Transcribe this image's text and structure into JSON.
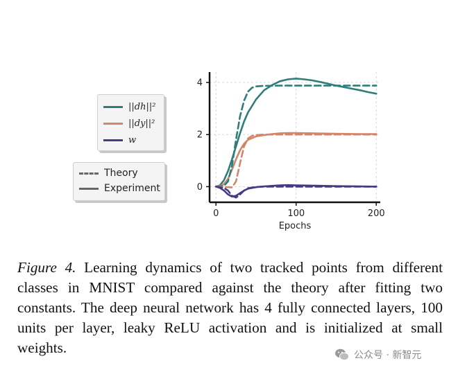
{
  "chart_data": {
    "type": "line",
    "xlabel": "Epochs",
    "ylabel": "",
    "xlim": [
      -8,
      205
    ],
    "ylim": [
      -0.6,
      4.4
    ],
    "xticks": [
      0,
      100,
      200
    ],
    "yticks": [
      0,
      2,
      4
    ],
    "grid": true,
    "legend": [
      {
        "placement": "upper-left-outside",
        "entries": [
          {
            "label": "||dh||^2",
            "color": "#2f7d7b",
            "style": "solid"
          },
          {
            "label": "||dy||^2",
            "color": "#d2856a",
            "style": "solid"
          },
          {
            "label": "w",
            "color": "#433b84",
            "style": "solid"
          }
        ]
      },
      {
        "placement": "lower-left-outside",
        "entries": [
          {
            "label": "Theory",
            "color": "#666666",
            "style": "dashed"
          },
          {
            "label": "Experiment",
            "color": "#666666",
            "style": "solid"
          }
        ]
      }
    ],
    "series": [
      {
        "name": "||dh||^2 Experiment",
        "color": "#2f7d7b",
        "style": "solid",
        "points": [
          [
            0,
            0
          ],
          [
            5,
            0.05
          ],
          [
            10,
            0.25
          ],
          [
            15,
            0.6
          ],
          [
            20,
            1.05
          ],
          [
            25,
            1.55
          ],
          [
            30,
            2.05
          ],
          [
            35,
            2.5
          ],
          [
            40,
            2.85
          ],
          [
            50,
            3.35
          ],
          [
            60,
            3.7
          ],
          [
            70,
            3.9
          ],
          [
            80,
            4.05
          ],
          [
            90,
            4.12
          ],
          [
            100,
            4.15
          ],
          [
            110,
            4.12
          ],
          [
            120,
            4.08
          ],
          [
            130,
            4.02
          ],
          [
            140,
            3.95
          ],
          [
            150,
            3.88
          ],
          [
            160,
            3.82
          ],
          [
            170,
            3.76
          ],
          [
            180,
            3.7
          ],
          [
            190,
            3.63
          ],
          [
            200,
            3.57
          ]
        ]
      },
      {
        "name": "||dh||^2 Theory",
        "color": "#2f7d7b",
        "style": "dashed",
        "points": [
          [
            0,
            0
          ],
          [
            10,
            0.03
          ],
          [
            15,
            0.2
          ],
          [
            20,
            0.8
          ],
          [
            25,
            1.8
          ],
          [
            30,
            2.7
          ],
          [
            35,
            3.3
          ],
          [
            40,
            3.65
          ],
          [
            45,
            3.8
          ],
          [
            50,
            3.85
          ],
          [
            60,
            3.87
          ],
          [
            80,
            3.88
          ],
          [
            100,
            3.88
          ],
          [
            150,
            3.88
          ],
          [
            200,
            3.88
          ]
        ]
      },
      {
        "name": "||dy||^2 Experiment",
        "color": "#d2856a",
        "style": "solid",
        "points": [
          [
            0,
            0
          ],
          [
            5,
            0.02
          ],
          [
            10,
            0.1
          ],
          [
            15,
            0.3
          ],
          [
            20,
            0.65
          ],
          [
            25,
            1.05
          ],
          [
            30,
            1.4
          ],
          [
            35,
            1.65
          ],
          [
            40,
            1.8
          ],
          [
            50,
            1.93
          ],
          [
            60,
            1.98
          ],
          [
            70,
            2.02
          ],
          [
            80,
            2.05
          ],
          [
            90,
            2.06
          ],
          [
            100,
            2.06
          ],
          [
            120,
            2.05
          ],
          [
            150,
            2.03
          ],
          [
            180,
            2.02
          ],
          [
            200,
            2.02
          ]
        ]
      },
      {
        "name": "||dy||^2 Theory",
        "color": "#d2856a",
        "style": "dashed",
        "points": [
          [
            0,
            0
          ],
          [
            15,
            -0.02
          ],
          [
            20,
            -0.03
          ],
          [
            25,
            0.2
          ],
          [
            30,
            0.9
          ],
          [
            35,
            1.55
          ],
          [
            40,
            1.85
          ],
          [
            45,
            1.95
          ],
          [
            50,
            1.98
          ],
          [
            60,
            2.0
          ],
          [
            80,
            2.0
          ],
          [
            100,
            2.0
          ],
          [
            150,
            2.0
          ],
          [
            200,
            2.0
          ]
        ]
      },
      {
        "name": "w Experiment",
        "color": "#433b84",
        "style": "solid",
        "points": [
          [
            0,
            0
          ],
          [
            5,
            -0.05
          ],
          [
            10,
            -0.15
          ],
          [
            15,
            -0.3
          ],
          [
            20,
            -0.38
          ],
          [
            25,
            -0.35
          ],
          [
            30,
            -0.25
          ],
          [
            35,
            -0.15
          ],
          [
            40,
            -0.08
          ],
          [
            50,
            -0.02
          ],
          [
            60,
            0.01
          ],
          [
            70,
            0.03
          ],
          [
            80,
            0.05
          ],
          [
            90,
            0.06
          ],
          [
            100,
            0.05
          ],
          [
            120,
            0.04
          ],
          [
            150,
            0.02
          ],
          [
            180,
            0.01
          ],
          [
            200,
            0.0
          ]
        ]
      },
      {
        "name": "w Theory",
        "color": "#433b84",
        "style": "dashed",
        "points": [
          [
            0,
            0
          ],
          [
            10,
            -0.05
          ],
          [
            15,
            -0.15
          ],
          [
            20,
            -0.35
          ],
          [
            25,
            -0.42
          ],
          [
            30,
            -0.3
          ],
          [
            35,
            -0.15
          ],
          [
            40,
            -0.06
          ],
          [
            50,
            -0.01
          ],
          [
            60,
            0.0
          ],
          [
            100,
            0.0
          ],
          [
            150,
            0.0
          ],
          [
            200,
            0.0
          ]
        ]
      }
    ]
  },
  "legend": {
    "dh_label": "||dh||²",
    "dy_label": "||dy||²",
    "w_label": "w",
    "theory_label": "Theory",
    "experiment_label": "Experiment"
  },
  "caption": {
    "figure_label": "Figure 4.",
    "text": "Learning dynamics of two tracked points from different classes in MNIST compared against the theory after fitting two constants. The deep neural network has 4 fully connected layers, 100 units per layer, leaky ReLU activation and is initialized at small weights."
  },
  "watermark": {
    "text": "公众号 · 新智元"
  }
}
